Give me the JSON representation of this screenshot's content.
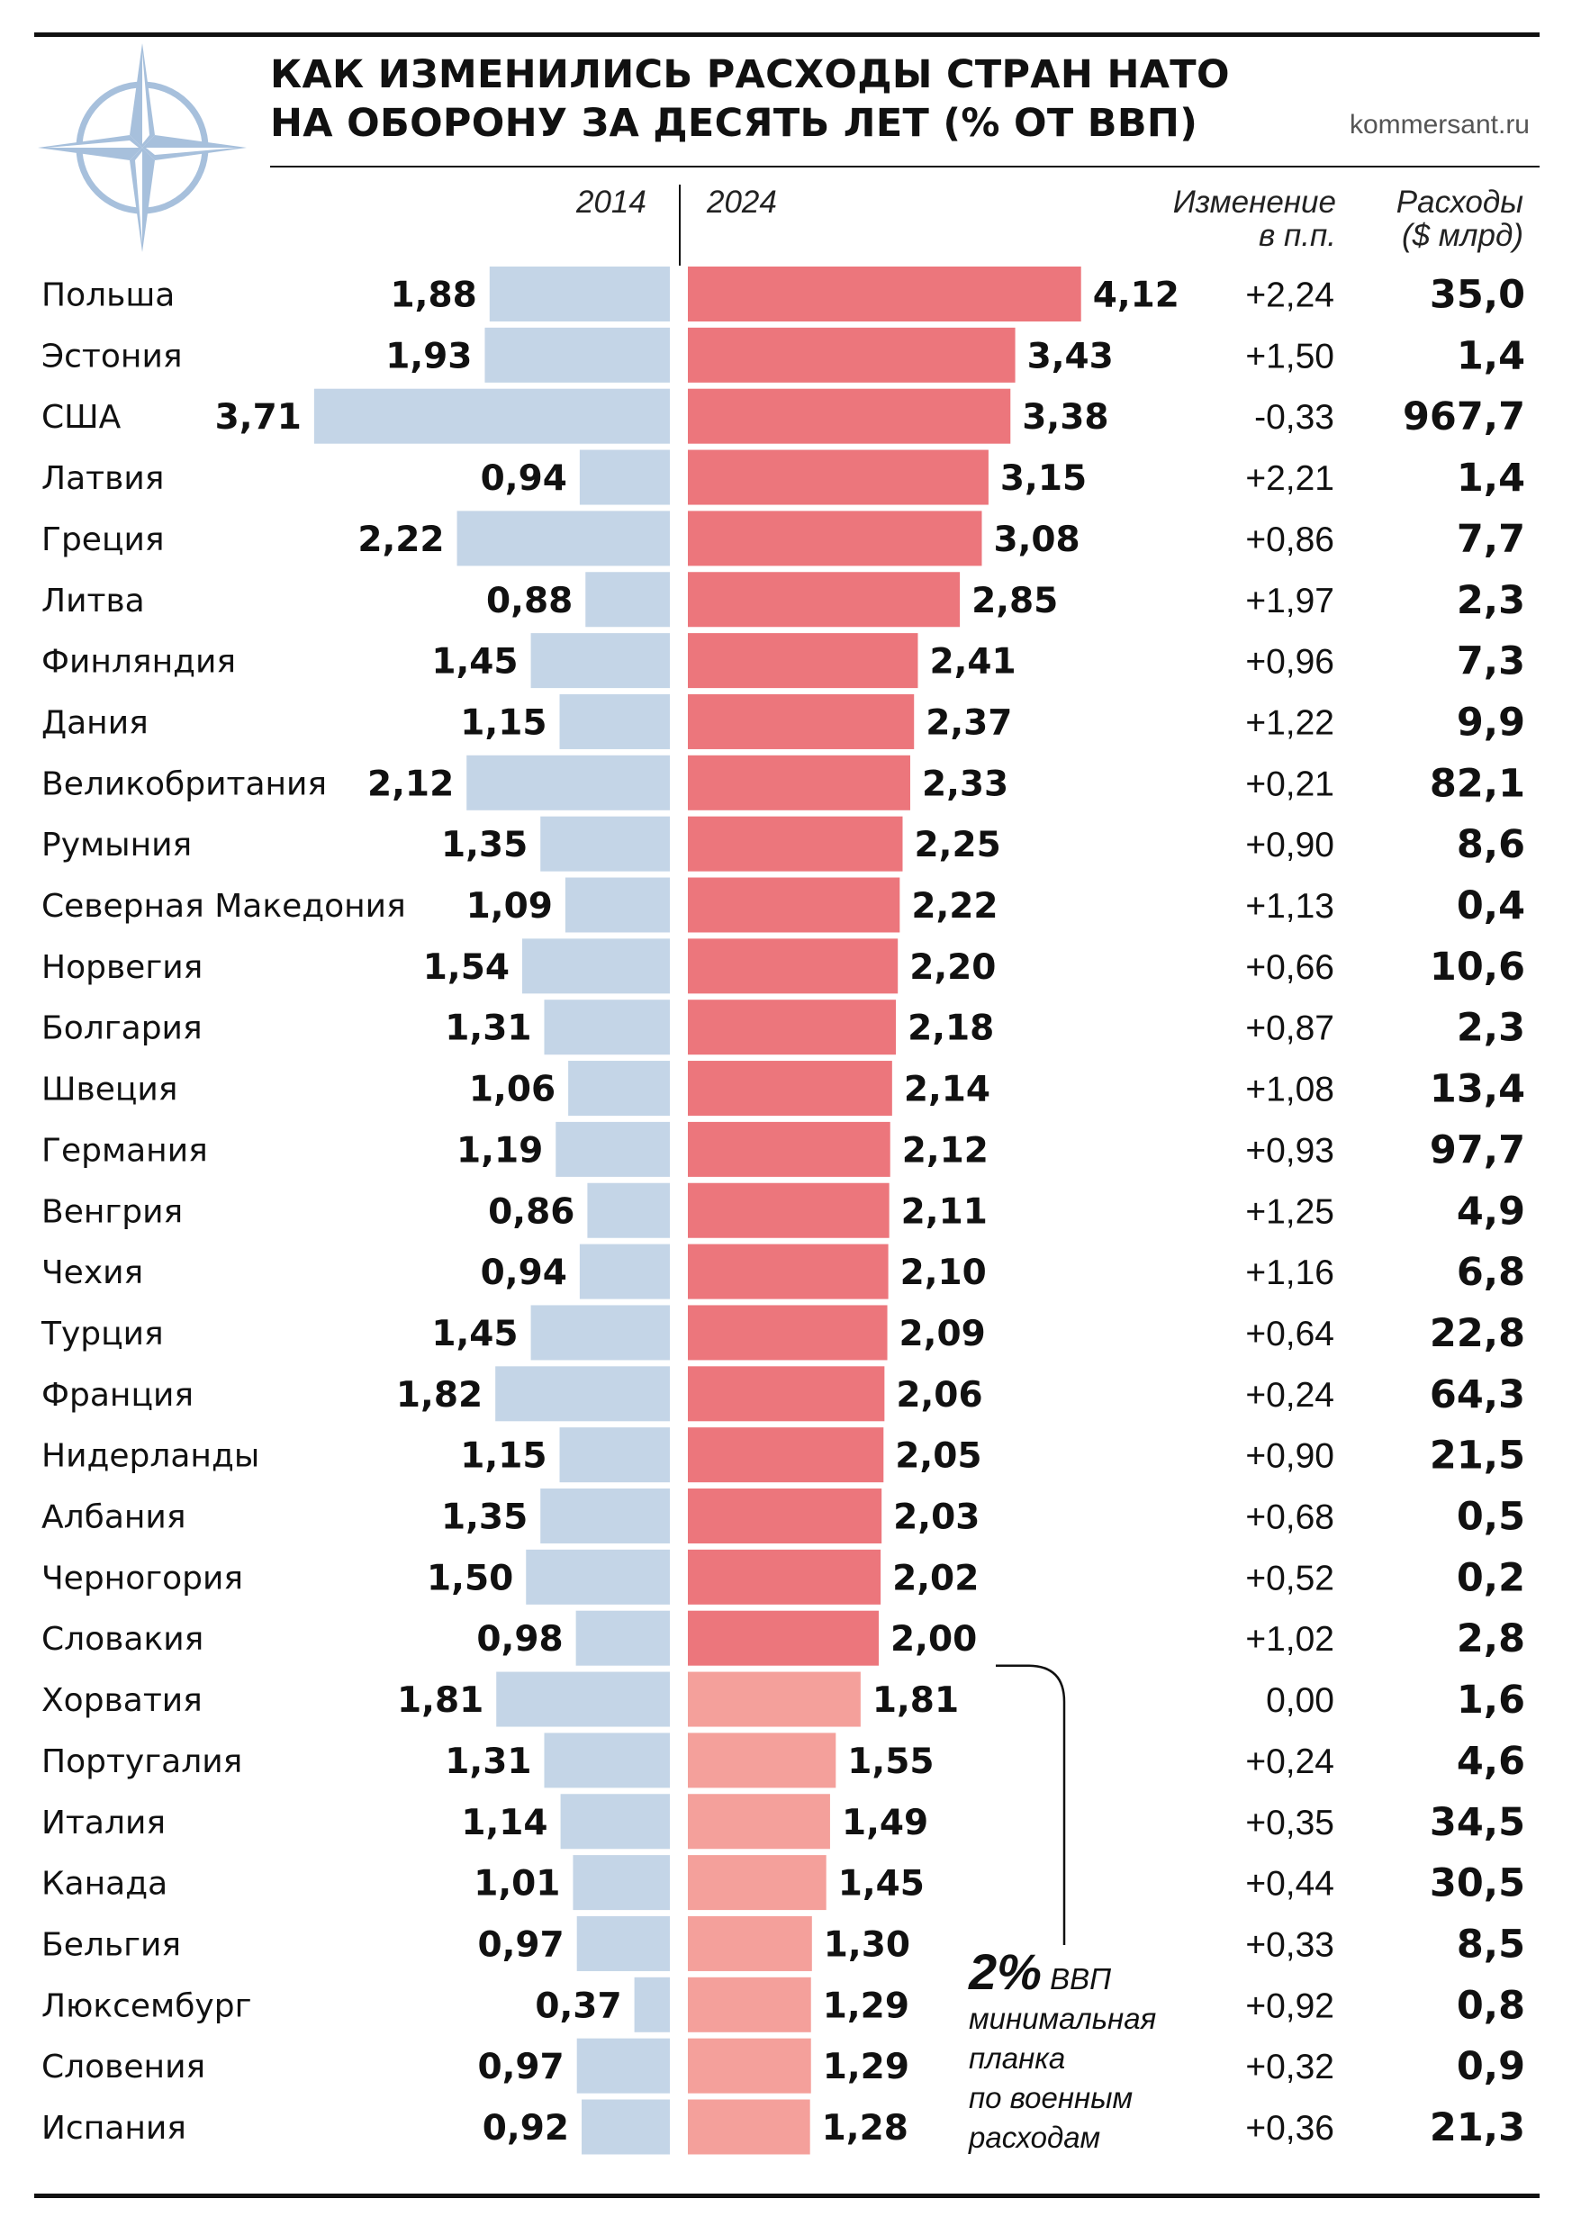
{
  "title": {
    "line1": "КАК ИЗМЕНИЛИСЬ РАСХОДЫ СТРАН НАТО",
    "line2": "НА ОБОРОНУ ЗА ДЕСЯТЬ ЛЕТ (% ОТ ВВП)"
  },
  "source": "kommersant.ru",
  "headers": {
    "year_left": "2014",
    "year_right": "2024",
    "change_line1": "Изменение",
    "change_line2": "в п.п.",
    "spend_line1": "Расходы",
    "spend_line2": "($ млрд)"
  },
  "annotation": {
    "value": "2%",
    "unit": "ВВП",
    "line1": "минимальная",
    "line2": "планка",
    "line3": "по военным",
    "line4": "расходам"
  },
  "colors": {
    "bar_2014": "#c4d5e7",
    "bar_2024_above": "#ec767c",
    "bar_2024_below": "#f4a09b",
    "logo": "#a7c0dc"
  },
  "logo_icon": "nato-compass-star-icon",
  "chart_data": {
    "type": "bar",
    "orientation": "horizontal-diverging",
    "threshold": 2.0,
    "series": [
      {
        "name": "2014"
      },
      {
        "name": "2024"
      }
    ],
    "rows": [
      {
        "country": "Польша",
        "v2014": 1.88,
        "v2024": 4.12,
        "l2014": "1,88",
        "l2024": "4,12",
        "change": "+2,24",
        "spend": "35,0"
      },
      {
        "country": "Эстония",
        "v2014": 1.93,
        "v2024": 3.43,
        "l2014": "1,93",
        "l2024": "3,43",
        "change": "+1,50",
        "spend": "1,4"
      },
      {
        "country": "США",
        "v2014": 3.71,
        "v2024": 3.38,
        "l2014": "3,71",
        "l2024": "3,38",
        "change": "-0,33",
        "spend": "967,7"
      },
      {
        "country": "Латвия",
        "v2014": 0.94,
        "v2024": 3.15,
        "l2014": "0,94",
        "l2024": "3,15",
        "change": "+2,21",
        "spend": "1,4"
      },
      {
        "country": "Греция",
        "v2014": 2.22,
        "v2024": 3.08,
        "l2014": "2,22",
        "l2024": "3,08",
        "change": "+0,86",
        "spend": "7,7"
      },
      {
        "country": "Литва",
        "v2014": 0.88,
        "v2024": 2.85,
        "l2014": "0,88",
        "l2024": "2,85",
        "change": "+1,97",
        "spend": "2,3"
      },
      {
        "country": "Финляндия",
        "v2014": 1.45,
        "v2024": 2.41,
        "l2014": "1,45",
        "l2024": "2,41",
        "change": "+0,96",
        "spend": "7,3"
      },
      {
        "country": "Дания",
        "v2014": 1.15,
        "v2024": 2.37,
        "l2014": "1,15",
        "l2024": "2,37",
        "change": "+1,22",
        "spend": "9,9"
      },
      {
        "country": "Великобритания",
        "v2014": 2.12,
        "v2024": 2.33,
        "l2014": "2,12",
        "l2024": "2,33",
        "change": "+0,21",
        "spend": "82,1"
      },
      {
        "country": "Румыния",
        "v2014": 1.35,
        "v2024": 2.25,
        "l2014": "1,35",
        "l2024": "2,25",
        "change": "+0,90",
        "spend": "8,6"
      },
      {
        "country": "Северная Македония",
        "v2014": 1.09,
        "v2024": 2.22,
        "l2014": "1,09",
        "l2024": "2,22",
        "change": "+1,13",
        "spend": "0,4"
      },
      {
        "country": "Норвегия",
        "v2014": 1.54,
        "v2024": 2.2,
        "l2014": "1,54",
        "l2024": "2,20",
        "change": "+0,66",
        "spend": "10,6"
      },
      {
        "country": "Болгария",
        "v2014": 1.31,
        "v2024": 2.18,
        "l2014": "1,31",
        "l2024": "2,18",
        "change": "+0,87",
        "spend": "2,3"
      },
      {
        "country": "Швеция",
        "v2014": 1.06,
        "v2024": 2.14,
        "l2014": "1,06",
        "l2024": "2,14",
        "change": "+1,08",
        "spend": "13,4"
      },
      {
        "country": "Германия",
        "v2014": 1.19,
        "v2024": 2.12,
        "l2014": "1,19",
        "l2024": "2,12",
        "change": "+0,93",
        "spend": "97,7"
      },
      {
        "country": "Венгрия",
        "v2014": 0.86,
        "v2024": 2.11,
        "l2014": "0,86",
        "l2024": "2,11",
        "change": "+1,25",
        "spend": "4,9"
      },
      {
        "country": "Чехия",
        "v2014": 0.94,
        "v2024": 2.1,
        "l2014": "0,94",
        "l2024": "2,10",
        "change": "+1,16",
        "spend": "6,8"
      },
      {
        "country": "Турция",
        "v2014": 1.45,
        "v2024": 2.09,
        "l2014": "1,45",
        "l2024": "2,09",
        "change": "+0,64",
        "spend": "22,8"
      },
      {
        "country": "Франция",
        "v2014": 1.82,
        "v2024": 2.06,
        "l2014": "1,82",
        "l2024": "2,06",
        "change": "+0,24",
        "spend": "64,3"
      },
      {
        "country": "Нидерланды",
        "v2014": 1.15,
        "v2024": 2.05,
        "l2014": "1,15",
        "l2024": "2,05",
        "change": "+0,90",
        "spend": "21,5"
      },
      {
        "country": "Албания",
        "v2014": 1.35,
        "v2024": 2.03,
        "l2014": "1,35",
        "l2024": "2,03",
        "change": "+0,68",
        "spend": "0,5"
      },
      {
        "country": "Черногория",
        "v2014": 1.5,
        "v2024": 2.02,
        "l2014": "1,50",
        "l2024": "2,02",
        "change": "+0,52",
        "spend": "0,2"
      },
      {
        "country": "Словакия",
        "v2014": 0.98,
        "v2024": 2.0,
        "l2014": "0,98",
        "l2024": "2,00",
        "change": "+1,02",
        "spend": "2,8"
      },
      {
        "country": "Хорватия",
        "v2014": 1.81,
        "v2024": 1.81,
        "l2014": "1,81",
        "l2024": "1,81",
        "change": "0,00",
        "spend": "1,6"
      },
      {
        "country": "Португалия",
        "v2014": 1.31,
        "v2024": 1.55,
        "l2014": "1,31",
        "l2024": "1,55",
        "change": "+0,24",
        "spend": "4,6"
      },
      {
        "country": "Италия",
        "v2014": 1.14,
        "v2024": 1.49,
        "l2014": "1,14",
        "l2024": "1,49",
        "change": "+0,35",
        "spend": "34,5"
      },
      {
        "country": "Канада",
        "v2014": 1.01,
        "v2024": 1.45,
        "l2014": "1,01",
        "l2024": "1,45",
        "change": "+0,44",
        "spend": "30,5"
      },
      {
        "country": "Бельгия",
        "v2014": 0.97,
        "v2024": 1.3,
        "l2014": "0,97",
        "l2024": "1,30",
        "change": "+0,33",
        "spend": "8,5"
      },
      {
        "country": "Люксембург",
        "v2014": 0.37,
        "v2024": 1.29,
        "l2014": "0,37",
        "l2024": "1,29",
        "change": "+0,92",
        "spend": "0,8"
      },
      {
        "country": "Словения",
        "v2014": 0.97,
        "v2024": 1.29,
        "l2014": "0,97",
        "l2024": "1,29",
        "change": "+0,32",
        "spend": "0,9"
      },
      {
        "country": "Испания",
        "v2014": 0.92,
        "v2024": 1.28,
        "l2014": "0,92",
        "l2024": "1,28",
        "change": "+0,36",
        "spend": "21,3"
      }
    ]
  }
}
